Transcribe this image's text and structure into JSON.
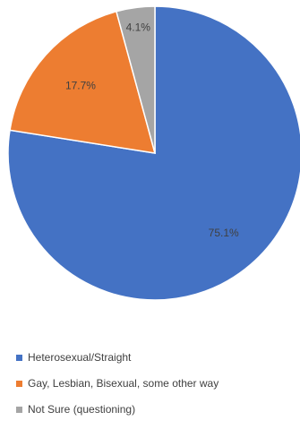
{
  "chart_data": {
    "type": "pie",
    "title": "",
    "slices": [
      {
        "label": "Heterosexual/Straight",
        "value": 75.1,
        "value_label": "75.1%",
        "color": "#4472C4"
      },
      {
        "label": "Gay, Lesbian, Bisexual, some other way",
        "value": 17.7,
        "value_label": "17.7%",
        "color": "#ED7D31"
      },
      {
        "label": "Not Sure (questioning)",
        "value": 4.1,
        "value_label": "4.1%",
        "color": "#A5A5A5"
      }
    ],
    "start_angle_deg": 0,
    "direction": "clockwise",
    "legend_position": "bottom",
    "data_labels": "inside"
  }
}
